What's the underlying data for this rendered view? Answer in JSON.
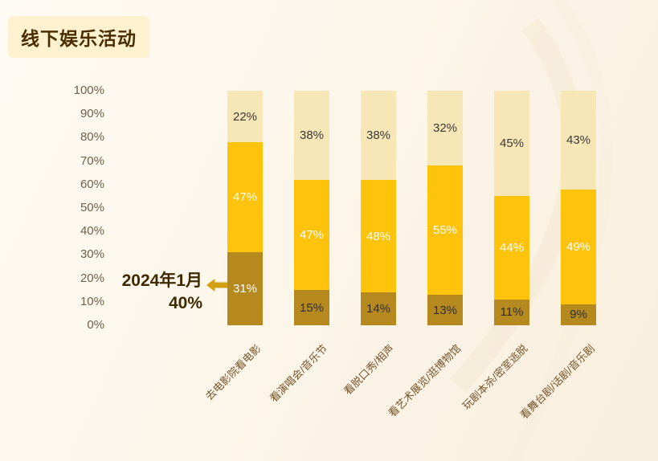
{
  "page": {
    "title": "线下娱乐活动"
  },
  "annotation": {
    "line1": "2024年1月",
    "line2": "40%"
  },
  "chart_data": {
    "type": "bar",
    "subtype": "stacked-percent",
    "title": "线下娱乐活动",
    "xlabel": "",
    "ylabel": "",
    "ylim": [
      0,
      100
    ],
    "grid": false,
    "legend": "none",
    "y_ticks": [
      "100%",
      "90%",
      "80%",
      "70%",
      "60%",
      "50%",
      "40%",
      "30%",
      "20%",
      "10%",
      "0%"
    ],
    "categories": [
      "去电影院看电影",
      "看演唱会/音乐节",
      "看脱口秀/相声",
      "看艺术展览/逛博物馆",
      "玩剧本杀/密室逃脱",
      "看舞台剧/话剧/音乐剧"
    ],
    "series": [
      {
        "name": "segment-bottom",
        "color": "#b6891f",
        "values": [
          31,
          15,
          14,
          13,
          11,
          9
        ],
        "label_colors": [
          "#ffffff",
          "#2f2f2f",
          "#2f2f2f",
          "#2f2f2f",
          "#2f2f2f",
          "#2f2f2f"
        ]
      },
      {
        "name": "segment-middle",
        "color": "#ffc30b",
        "values": [
          47,
          47,
          48,
          55,
          44,
          49
        ],
        "label_colors": [
          "#ffffff",
          "#ffffff",
          "#ffffff",
          "#ffffff",
          "#ffffff",
          "#ffffff"
        ]
      },
      {
        "name": "segment-top",
        "color": "#f8e7b6",
        "values": [
          22,
          38,
          38,
          32,
          45,
          43
        ],
        "label_colors": [
          "#383838",
          "#383838",
          "#383838",
          "#383838",
          "#383838",
          "#383838"
        ]
      }
    ],
    "annotation": {
      "text": "2024年1月",
      "value": "40%",
      "target_category": "去电影院看电影"
    }
  },
  "colors": {
    "background_start": "#fefbf4",
    "background_end": "#f8eedd",
    "title_badge_bg": "#fdf1cf",
    "title_text": "#4a2e00",
    "axis_text": "#6d6046",
    "category_text": "#75542a",
    "annotation_text": "#3f2a00",
    "arrow": "#d4a013"
  }
}
